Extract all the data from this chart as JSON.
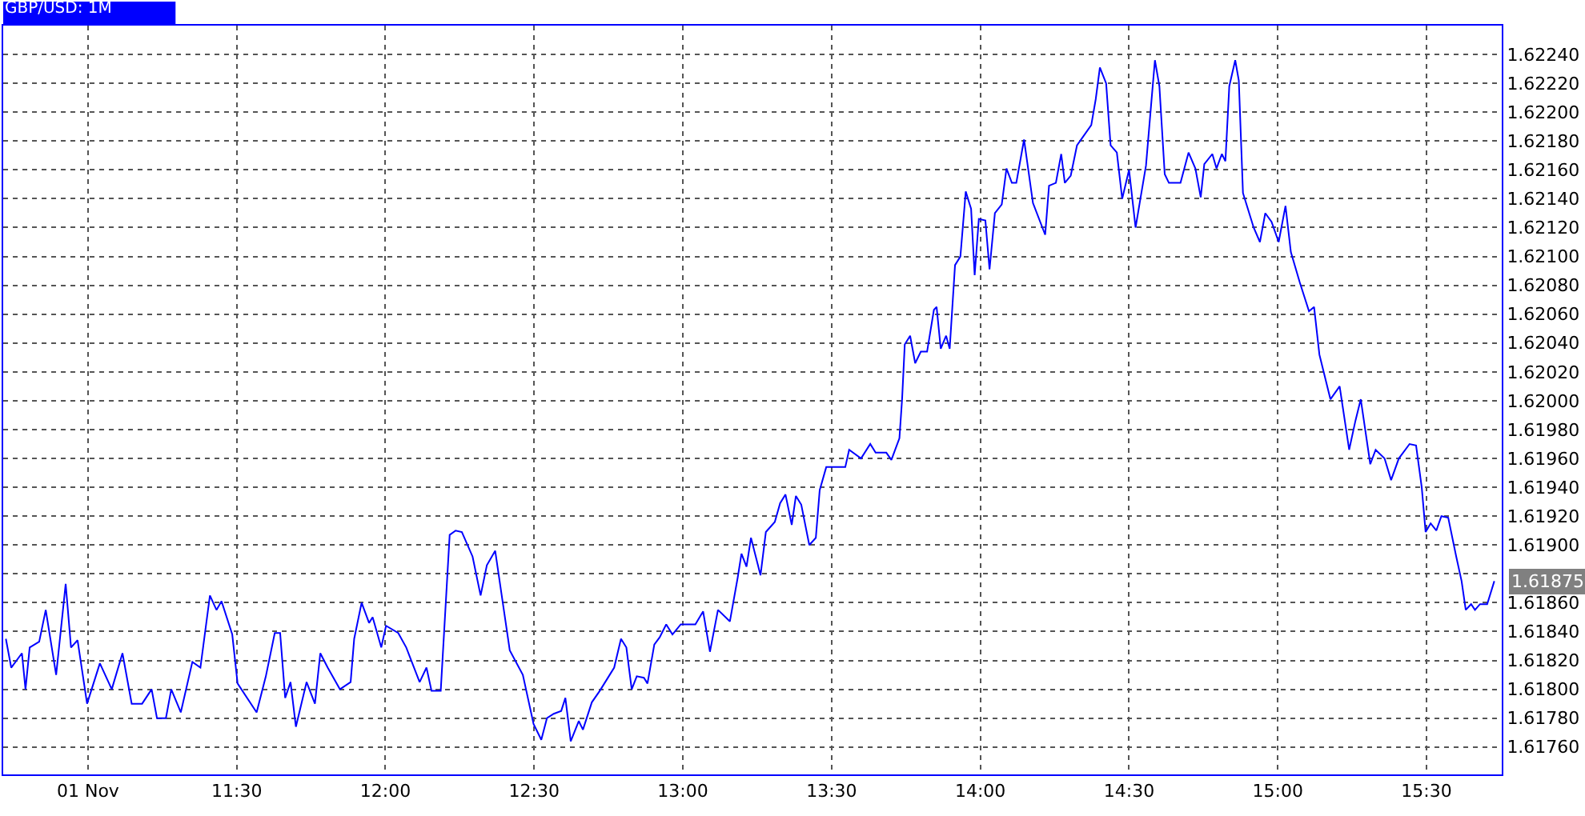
{
  "chart_data": {
    "type": "line",
    "title": "GBP/USD: 1M",
    "x": [
      10.724,
      10.742,
      10.778,
      10.79,
      10.804,
      10.836,
      10.858,
      10.893,
      10.925,
      10.943,
      10.965,
      10.997,
      11.04,
      11.08,
      11.116,
      11.147,
      11.182,
      11.214,
      11.232,
      11.262,
      11.28,
      11.312,
      11.351,
      11.378,
      11.41,
      11.432,
      11.449,
      11.485,
      11.503,
      11.567,
      11.598,
      11.628,
      11.646,
      11.663,
      11.681,
      11.699,
      11.735,
      11.763,
      11.781,
      11.806,
      11.847,
      11.883,
      11.895,
      11.92,
      11.945,
      11.957,
      11.986,
      12.002,
      12.043,
      12.07,
      12.115,
      12.138,
      12.155,
      12.186,
      12.216,
      12.236,
      12.257,
      12.293,
      12.32,
      12.341,
      12.369,
      12.418,
      12.462,
      12.498,
      12.524,
      12.543,
      12.566,
      12.591,
      12.605,
      12.623,
      12.65,
      12.664,
      12.694,
      12.721,
      12.769,
      12.792,
      12.81,
      12.828,
      12.845,
      12.869,
      12.881,
      12.904,
      12.922,
      12.944,
      12.965,
      12.993,
      13.042,
      13.068,
      13.091,
      13.118,
      13.158,
      13.184,
      13.197,
      13.214,
      13.229,
      13.261,
      13.279,
      13.309,
      13.327,
      13.345,
      13.366,
      13.38,
      13.398,
      13.425,
      13.447,
      13.46,
      13.482,
      13.546,
      13.559,
      13.599,
      13.63,
      13.648,
      13.684,
      13.701,
      13.728,
      13.737,
      13.746,
      13.764,
      13.781,
      13.8,
      13.821,
      13.844,
      13.853,
      13.867,
      13.885,
      13.897,
      13.915,
      13.933,
      13.951,
      13.969,
      13.981,
      13.995,
      14.017,
      14.031,
      14.049,
      14.072,
      14.088,
      14.106,
      14.121,
      14.147,
      14.177,
      14.218,
      14.231,
      14.254,
      14.272,
      14.284,
      14.304,
      14.325,
      14.373,
      14.388,
      14.402,
      14.423,
      14.438,
      14.459,
      14.477,
      14.5,
      14.522,
      14.539,
      14.557,
      14.575,
      14.587,
      14.602,
      14.62,
      14.634,
      14.673,
      14.7,
      14.723,
      14.741,
      14.753,
      14.78,
      14.794,
      14.812,
      14.824,
      14.837,
      14.857,
      14.869,
      14.883,
      14.919,
      14.94,
      14.958,
      14.979,
      15.003,
      15.026,
      15.044,
      15.074,
      15.105,
      15.122,
      15.14,
      15.177,
      15.208,
      15.24,
      15.261,
      15.279,
      15.311,
      15.329,
      15.359,
      15.381,
      15.407,
      15.443,
      15.465,
      15.484,
      15.497,
      15.514,
      15.533,
      15.55,
      15.573,
      15.6,
      15.618,
      15.632,
      15.65,
      15.663,
      15.68,
      15.704,
      15.728
    ],
    "series": [
      {
        "color": "#0000ff",
        "values": [
          1.61835,
          1.61815,
          1.61825,
          1.618,
          1.61829,
          1.61833,
          1.61855,
          1.6181,
          1.61873,
          1.61829,
          1.61834,
          1.6179,
          1.61818,
          1.618,
          1.61825,
          1.6179,
          1.6179,
          1.618,
          1.6178,
          1.6178,
          1.618,
          1.61784,
          1.61819,
          1.61815,
          1.61865,
          1.61855,
          1.61861,
          1.61838,
          1.61804,
          1.61784,
          1.61809,
          1.61839,
          1.61839,
          1.61794,
          1.61805,
          1.61774,
          1.61805,
          1.6179,
          1.61825,
          1.61815,
          1.618,
          1.61805,
          1.61835,
          1.6186,
          1.61846,
          1.6185,
          1.61829,
          1.61844,
          1.61839,
          1.61829,
          1.61805,
          1.61815,
          1.61799,
          1.61799,
          1.61907,
          1.6191,
          1.61909,
          1.61892,
          1.61865,
          1.61886,
          1.61896,
          1.61827,
          1.6181,
          1.61776,
          1.61765,
          1.6178,
          1.61783,
          1.61785,
          1.61794,
          1.61764,
          1.61778,
          1.61772,
          1.61791,
          1.61799,
          1.61815,
          1.61835,
          1.61829,
          1.618,
          1.61809,
          1.61808,
          1.61804,
          1.61831,
          1.61836,
          1.61845,
          1.61838,
          1.61845,
          1.61845,
          1.61854,
          1.61826,
          1.61855,
          1.61847,
          1.61877,
          1.61894,
          1.61885,
          1.61905,
          1.61879,
          1.61909,
          1.61916,
          1.61929,
          1.61935,
          1.61914,
          1.61934,
          1.61928,
          1.619,
          1.61905,
          1.61938,
          1.61954,
          1.61954,
          1.61966,
          1.6196,
          1.6197,
          1.61964,
          1.61964,
          1.61959,
          1.61974,
          1.62001,
          1.62039,
          1.62045,
          1.62026,
          1.62034,
          1.62034,
          1.62063,
          1.62065,
          1.62036,
          1.62045,
          1.62036,
          1.62094,
          1.621,
          1.62145,
          1.62133,
          1.62087,
          1.62126,
          1.62125,
          1.62091,
          1.6213,
          1.62136,
          1.62161,
          1.62151,
          1.62151,
          1.62181,
          1.62137,
          1.62115,
          1.62149,
          1.62151,
          1.62171,
          1.62151,
          1.62156,
          1.62177,
          1.62191,
          1.62209,
          1.62231,
          1.6222,
          1.62177,
          1.62172,
          1.6214,
          1.6216,
          1.6212,
          1.62141,
          1.62163,
          1.62207,
          1.62236,
          1.62218,
          1.62157,
          1.62151,
          1.62151,
          1.62172,
          1.62161,
          1.62141,
          1.62164,
          1.62171,
          1.62161,
          1.62171,
          1.62166,
          1.62218,
          1.62236,
          1.62222,
          1.62144,
          1.6212,
          1.6211,
          1.6213,
          1.62124,
          1.6211,
          1.62135,
          1.62103,
          1.62082,
          1.62062,
          1.62065,
          1.62032,
          1.62001,
          1.6201,
          1.61966,
          1.61986,
          1.62001,
          1.61956,
          1.61966,
          1.6196,
          1.61945,
          1.6196,
          1.6197,
          1.61969,
          1.6194,
          1.61909,
          1.61915,
          1.6191,
          1.6192,
          1.61919,
          1.61892,
          1.61875,
          1.61855,
          1.61859,
          1.61855,
          1.61859,
          1.61859,
          1.61875
        ]
      }
    ],
    "xlim": [
      10.715,
      15.753
    ],
    "ylim": [
      1.61741,
      1.6226
    ],
    "xticks": [
      {
        "value": 11,
        "label": "01 Nov"
      },
      {
        "value": 11.5,
        "label": "11:30"
      },
      {
        "value": 12,
        "label": "12:00"
      },
      {
        "value": 12.5,
        "label": "12:30"
      },
      {
        "value": 13,
        "label": "13:00"
      },
      {
        "value": 13.5,
        "label": "13:30"
      },
      {
        "value": 14,
        "label": "14:00"
      },
      {
        "value": 14.5,
        "label": "14:30"
      },
      {
        "value": 15,
        "label": "15:00"
      },
      {
        "value": 15.5,
        "label": "15:30"
      }
    ],
    "yticks": [
      {
        "value": 1.6176,
        "label": "1.61760"
      },
      {
        "value": 1.6178,
        "label": "1.61780"
      },
      {
        "value": 1.618,
        "label": "1.61800"
      },
      {
        "value": 1.6182,
        "label": "1.61820"
      },
      {
        "value": 1.6184,
        "label": "1.61840"
      },
      {
        "value": 1.6186,
        "label": "1.61860"
      },
      {
        "value": 1.6188,
        "label": null
      },
      {
        "value": 1.619,
        "label": "1.61900"
      },
      {
        "value": 1.6192,
        "label": "1.61920"
      },
      {
        "value": 1.6194,
        "label": "1.61940"
      },
      {
        "value": 1.6196,
        "label": "1.61960"
      },
      {
        "value": 1.6198,
        "label": "1.61980"
      },
      {
        "value": 1.62,
        "label": "1.62000"
      },
      {
        "value": 1.6202,
        "label": "1.62020"
      },
      {
        "value": 1.6204,
        "label": "1.62040"
      },
      {
        "value": 1.6206,
        "label": "1.62060"
      },
      {
        "value": 1.6208,
        "label": "1.62080"
      },
      {
        "value": 1.621,
        "label": "1.62100"
      },
      {
        "value": 1.6212,
        "label": "1.62120"
      },
      {
        "value": 1.6214,
        "label": "1.62140"
      },
      {
        "value": 1.6216,
        "label": "1.62160"
      },
      {
        "value": 1.6218,
        "label": "1.62180"
      },
      {
        "value": 1.622,
        "label": "1.62200"
      },
      {
        "value": 1.6222,
        "label": "1.62220"
      },
      {
        "value": 1.6224,
        "label": "1.62240"
      }
    ],
    "grid": true,
    "annotations": [
      "1.61875"
    ]
  }
}
